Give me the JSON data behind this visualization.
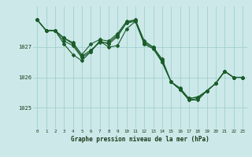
{
  "title": "Graphe pression niveau de la mer (hPa)",
  "bg_color": "#cce8e8",
  "grid_color": "#99cccc",
  "line_color": "#1a5c2a",
  "xlim": [
    -0.5,
    23.5
  ],
  "ylim": [
    1024.3,
    1028.35
  ],
  "yticks": [
    1025,
    1026,
    1027
  ],
  "xticks": [
    0,
    1,
    2,
    3,
    4,
    5,
    6,
    7,
    8,
    9,
    10,
    11,
    12,
    13,
    14,
    15,
    16,
    17,
    18,
    19,
    20,
    21,
    22,
    23
  ],
  "series": [
    [
      1027.9,
      1027.55,
      1027.55,
      1027.3,
      1027.15,
      1026.75,
      1027.1,
      1027.25,
      1027.2,
      1027.45,
      1027.85,
      1027.9,
      1027.15,
      1027.0,
      1026.55,
      1025.85,
      1025.65,
      1025.3,
      1025.35,
      1025.55,
      1025.8,
      1026.2,
      1026.0,
      1026.0
    ],
    [
      1027.9,
      1027.55,
      1027.55,
      1027.2,
      1027.05,
      1026.65,
      1026.85,
      1027.2,
      1027.1,
      1027.35,
      1027.8,
      1027.85,
      1027.1,
      1026.95,
      1026.5,
      1025.85,
      1025.6,
      1025.25,
      1025.3,
      1025.55,
      1025.8,
      1026.2,
      1026.0,
      1026.0
    ],
    [
      1027.9,
      1027.55,
      1027.55,
      1027.1,
      1026.75,
      1026.55,
      1026.85,
      1027.2,
      1027.0,
      1027.05,
      1027.6,
      1027.85,
      1027.1,
      1026.95,
      1026.5,
      1025.85,
      1025.6,
      1025.25,
      1025.25,
      1025.55,
      1025.8,
      1026.2,
      1026.0,
      1026.0
    ],
    [
      1027.9,
      1027.55,
      1027.55,
      1027.3,
      1027.1,
      1026.7,
      1026.9,
      1027.15,
      1027.15,
      1027.4,
      1027.8,
      1027.9,
      1027.2,
      1027.0,
      1026.6,
      1025.85,
      1025.6,
      1025.3,
      1025.35,
      1025.55,
      1025.8,
      1026.2,
      1026.0,
      1026.0
    ]
  ]
}
